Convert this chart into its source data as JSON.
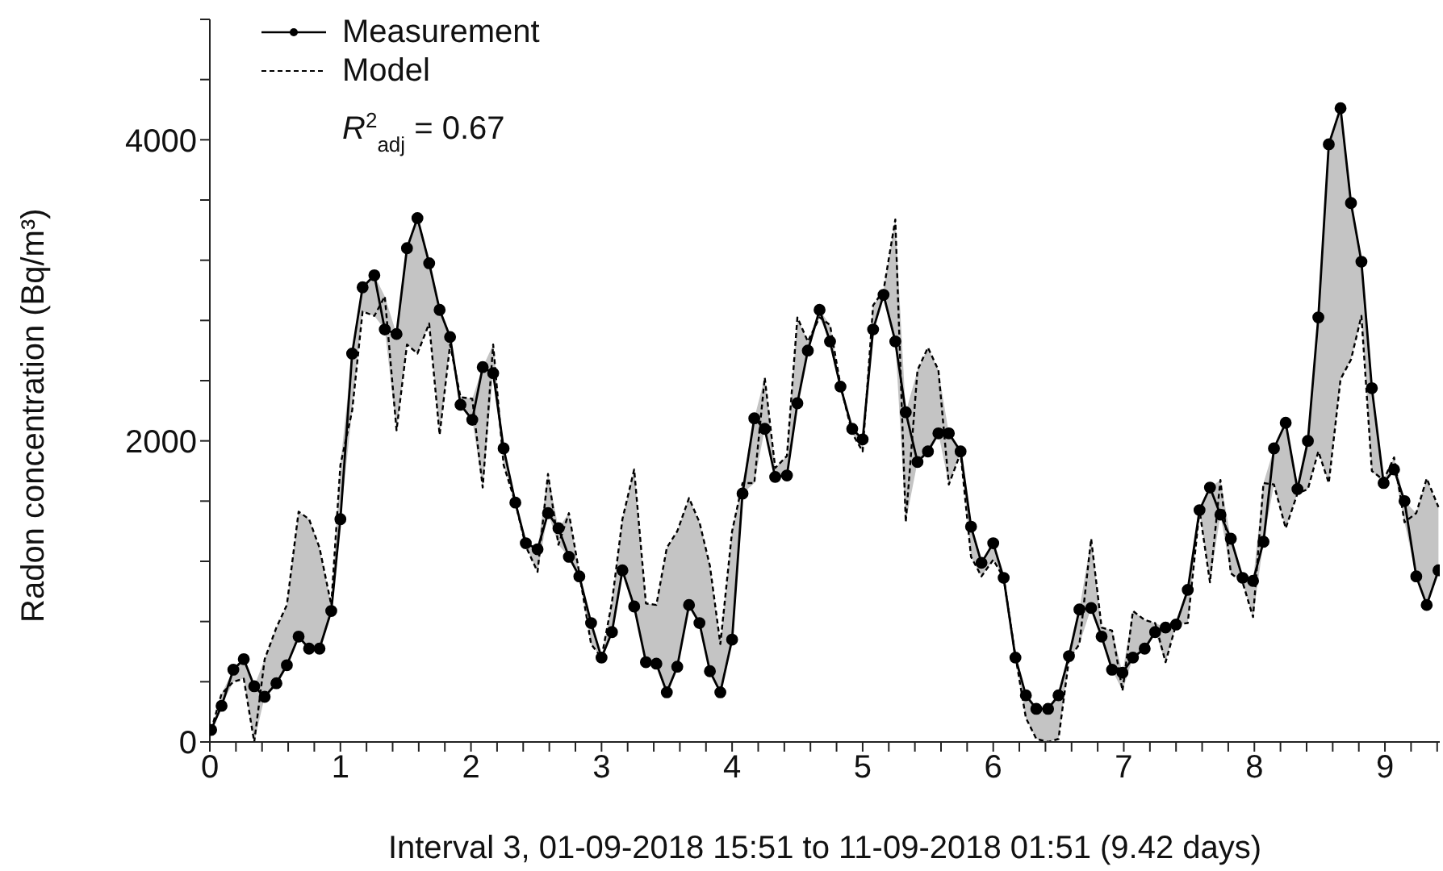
{
  "chart_data": {
    "type": "line",
    "xlabel": "Interval 3, 01-09-2018 15:51 to 11-09-2018 01:51 (9.42 days)",
    "ylabel": "Radon concentration (Bq/m³)",
    "annotations": [
      "R$^{2}$$_{adj}$ = 0.67"
    ],
    "legend": "top left",
    "x": [
      0.01,
      0.09,
      0.18,
      0.26,
      0.34,
      0.42,
      0.51,
      0.59,
      0.68,
      0.76,
      0.84,
      0.93,
      1.0,
      1.09,
      1.17,
      1.26,
      1.34,
      1.43,
      1.51,
      1.59,
      1.68,
      1.76,
      1.84,
      1.92,
      2.01,
      2.09,
      2.17,
      2.25,
      2.34,
      2.42,
      2.51,
      2.59,
      2.67,
      2.75,
      2.83,
      2.92,
      3.0,
      3.08,
      3.16,
      3.25,
      3.34,
      3.42,
      3.5,
      3.58,
      3.67,
      3.75,
      3.83,
      3.91,
      4.0,
      4.08,
      4.17,
      4.25,
      4.33,
      4.42,
      4.5,
      4.58,
      4.67,
      4.75,
      4.83,
      4.92,
      5.0,
      5.08,
      5.16,
      5.25,
      5.33,
      5.42,
      5.5,
      5.58,
      5.66,
      5.75,
      5.83,
      5.91,
      6.0,
      6.08,
      6.17,
      6.25,
      6.33,
      6.42,
      6.5,
      6.58,
      6.66,
      6.75,
      6.83,
      6.91,
      6.99,
      7.07,
      7.16,
      7.24,
      7.32,
      7.4,
      7.49,
      7.58,
      7.66,
      7.74,
      7.82,
      7.91,
      7.99,
      8.07,
      8.15,
      8.24,
      8.33,
      8.41,
      8.49,
      8.57,
      8.66,
      8.74,
      8.82,
      8.9,
      8.99,
      9.07,
      9.15,
      9.24,
      9.32,
      9.41
    ],
    "series": [
      {
        "name": "Measurement",
        "color": "#000000",
        "marker": "circle",
        "line_style": "solid",
        "values": [
          80,
          240,
          480,
          550,
          370,
          300,
          390,
          510,
          700,
          620,
          620,
          870,
          1480,
          2580,
          3020,
          3100,
          2740,
          2710,
          3280,
          3480,
          3180,
          2870,
          2690,
          2240,
          2140,
          2490,
          2450,
          1950,
          1590,
          1320,
          1280,
          1520,
          1420,
          1230,
          1100,
          790,
          560,
          730,
          1140,
          900,
          530,
          520,
          330,
          500,
          910,
          790,
          470,
          330,
          680,
          1650,
          2150,
          2080,
          1760,
          1770,
          2250,
          2600,
          2870,
          2660,
          2360,
          2080,
          2010,
          2740,
          2970,
          2660,
          2190,
          1860,
          1930,
          2050,
          2050,
          1930,
          1430,
          1190,
          1320,
          1090,
          560,
          310,
          220,
          220,
          310,
          570,
          880,
          890,
          700,
          480,
          460,
          560,
          620,
          730,
          760,
          780,
          1010,
          1540,
          1690,
          1510,
          1350,
          1090,
          1070,
          1330,
          1950,
          2120,
          1680,
          2000,
          2820,
          3970,
          4210,
          3580,
          3190,
          2350,
          1720,
          1810,
          1600,
          1100,
          910,
          1140
        ]
      },
      {
        "name": "Model",
        "color": "#000000",
        "marker": "none",
        "line_style": "dashed",
        "lower": [
          80,
          240,
          400,
          420,
          0,
          300,
          390,
          510,
          700,
          620,
          620,
          870,
          1480,
          2200,
          2860,
          2830,
          2740,
          2070,
          2640,
          2580,
          2780,
          2040,
          2640,
          2240,
          2140,
          1690,
          2450,
          1840,
          1590,
          1300,
          1130,
          1520,
          1310,
          1230,
          1100,
          650,
          560,
          730,
          1140,
          900,
          530,
          520,
          330,
          500,
          910,
          790,
          470,
          330,
          680,
          1650,
          1720,
          2080,
          1760,
          1770,
          2250,
          2600,
          2820,
          2660,
          2360,
          2050,
          1930,
          2740,
          2970,
          2660,
          1460,
          1860,
          1930,
          2050,
          1710,
          1920,
          1230,
          1100,
          1210,
          1090,
          560,
          160,
          20,
          0,
          20,
          550,
          650,
          890,
          700,
          480,
          340,
          560,
          620,
          730,
          530,
          780,
          790,
          1540,
          1060,
          1510,
          1120,
          1060,
          830,
          1330,
          1710,
          1420,
          1650,
          1680,
          1930,
          1720,
          2410,
          2540,
          2830,
          1800,
          1720,
          1810,
          1460,
          1100,
          910,
          1140
        ],
        "upper": [
          80,
          320,
          480,
          550,
          370,
          550,
          760,
          910,
          1530,
          1480,
          1290,
          910,
          1840,
          2580,
          3020,
          3100,
          2960,
          2710,
          3280,
          3480,
          3180,
          2870,
          2690,
          2290,
          2280,
          2490,
          2640,
          1950,
          1590,
          1320,
          1280,
          1780,
          1420,
          1520,
          1120,
          790,
          560,
          930,
          1480,
          1810,
          920,
          910,
          1290,
          1400,
          1620,
          1460,
          1170,
          650,
          1400,
          1720,
          2150,
          2420,
          1820,
          1900,
          2820,
          2660,
          2870,
          2770,
          2370,
          2080,
          2010,
          2900,
          3000,
          3470,
          2190,
          2470,
          2620,
          2470,
          2050,
          1930,
          1430,
          1190,
          1320,
          1090,
          570,
          310,
          220,
          220,
          310,
          570,
          880,
          1350,
          760,
          740,
          460,
          870,
          810,
          790,
          760,
          780,
          1010,
          1540,
          1690,
          1740,
          1350,
          1090,
          1070,
          1720,
          1950,
          2120,
          1680,
          2000,
          2820,
          3970,
          4210,
          3580,
          3190,
          2350,
          1740,
          1890,
          1600,
          1520,
          1750,
          1560
        ],
        "values": [
          80,
          320,
          400,
          420,
          0,
          550,
          760,
          910,
          1530,
          1480,
          1290,
          910,
          1840,
          2200,
          2860,
          2830,
          2960,
          2070,
          2640,
          2580,
          2780,
          2040,
          2640,
          2290,
          2280,
          1690,
          2640,
          1840,
          1590,
          1300,
          1130,
          1780,
          1310,
          1520,
          1120,
          650,
          560,
          930,
          1480,
          1810,
          920,
          910,
          1290,
          1400,
          1620,
          1460,
          1170,
          650,
          1400,
          1720,
          1720,
          2420,
          1820,
          1900,
          2820,
          2660,
          2820,
          2770,
          2370,
          2050,
          1930,
          2900,
          3000,
          3470,
          1460,
          2470,
          2620,
          2470,
          1710,
          1920,
          1230,
          1100,
          1210,
          1090,
          570,
          160,
          20,
          0,
          20,
          550,
          650,
          1350,
          760,
          740,
          340,
          870,
          810,
          790,
          530,
          780,
          790,
          1540,
          1060,
          1740,
          1120,
          1060,
          830,
          1720,
          1710,
          1420,
          1650,
          1680,
          1930,
          1720,
          2410,
          2540,
          2830,
          1800,
          1740,
          1890,
          1460,
          1520,
          1750,
          1560
        ]
      }
    ],
    "xlim": [
      0,
      9.42
    ],
    "xticks": [
      0,
      {
        "value": 0.2,
        "label": null
      },
      {
        "value": 0.4,
        "label": null
      },
      {
        "value": 0.6,
        "label": null
      },
      {
        "value": 0.8,
        "label": null
      },
      1,
      {
        "value": 1.2,
        "label": null
      },
      {
        "value": 1.4,
        "label": null
      },
      {
        "value": 1.6,
        "label": null
      },
      {
        "value": 1.8,
        "label": null
      },
      2,
      {
        "value": 2.2,
        "label": null
      },
      {
        "value": 2.4,
        "label": null
      },
      {
        "value": 2.6,
        "label": null
      },
      {
        "value": 2.8,
        "label": null
      },
      3,
      {
        "value": 3.2,
        "label": null
      },
      {
        "value": 3.4,
        "label": null
      },
      {
        "value": 3.6,
        "label": null
      },
      {
        "value": 3.8,
        "label": null
      },
      4,
      {
        "value": 4.2,
        "label": null
      },
      {
        "value": 4.4,
        "label": null
      },
      {
        "value": 4.6,
        "label": null
      },
      {
        "value": 4.8,
        "label": null
      },
      5,
      {
        "value": 5.2,
        "label": null
      },
      {
        "value": 5.4,
        "label": null
      },
      {
        "value": 5.6,
        "label": null
      },
      {
        "value": 5.8,
        "label": null
      },
      6,
      {
        "value": 6.2,
        "label": null
      },
      {
        "value": 6.4,
        "label": null
      },
      {
        "value": 6.6,
        "label": null
      },
      {
        "value": 6.8,
        "label": null
      },
      7,
      {
        "value": 7.2,
        "label": null
      },
      {
        "value": 7.4,
        "label": null
      },
      {
        "value": 7.6,
        "label": null
      },
      {
        "value": 7.8,
        "label": null
      },
      8,
      {
        "value": 8.2,
        "label": null
      },
      {
        "value": 8.4,
        "label": null
      },
      {
        "value": 8.6,
        "label": null
      },
      {
        "value": 8.8,
        "label": null
      },
      9,
      {
        "value": 9.2,
        "label": null
      },
      {
        "value": 9.4,
        "label": null
      }
    ],
    "ylim": [
      0,
      4800
    ],
    "yticks": [
      0,
      {
        "value": 400,
        "label": null
      },
      {
        "value": 800,
        "label": null
      },
      {
        "value": 1200,
        "label": null
      },
      {
        "value": 1600,
        "label": null
      },
      2000,
      {
        "value": 2400,
        "label": null
      },
      {
        "value": 2800,
        "label": null
      },
      {
        "value": 3200,
        "label": null
      },
      {
        "value": 3600,
        "label": null
      },
      4000,
      {
        "value": 4400,
        "label": null
      },
      {
        "value": 4800,
        "label": null
      }
    ]
  }
}
